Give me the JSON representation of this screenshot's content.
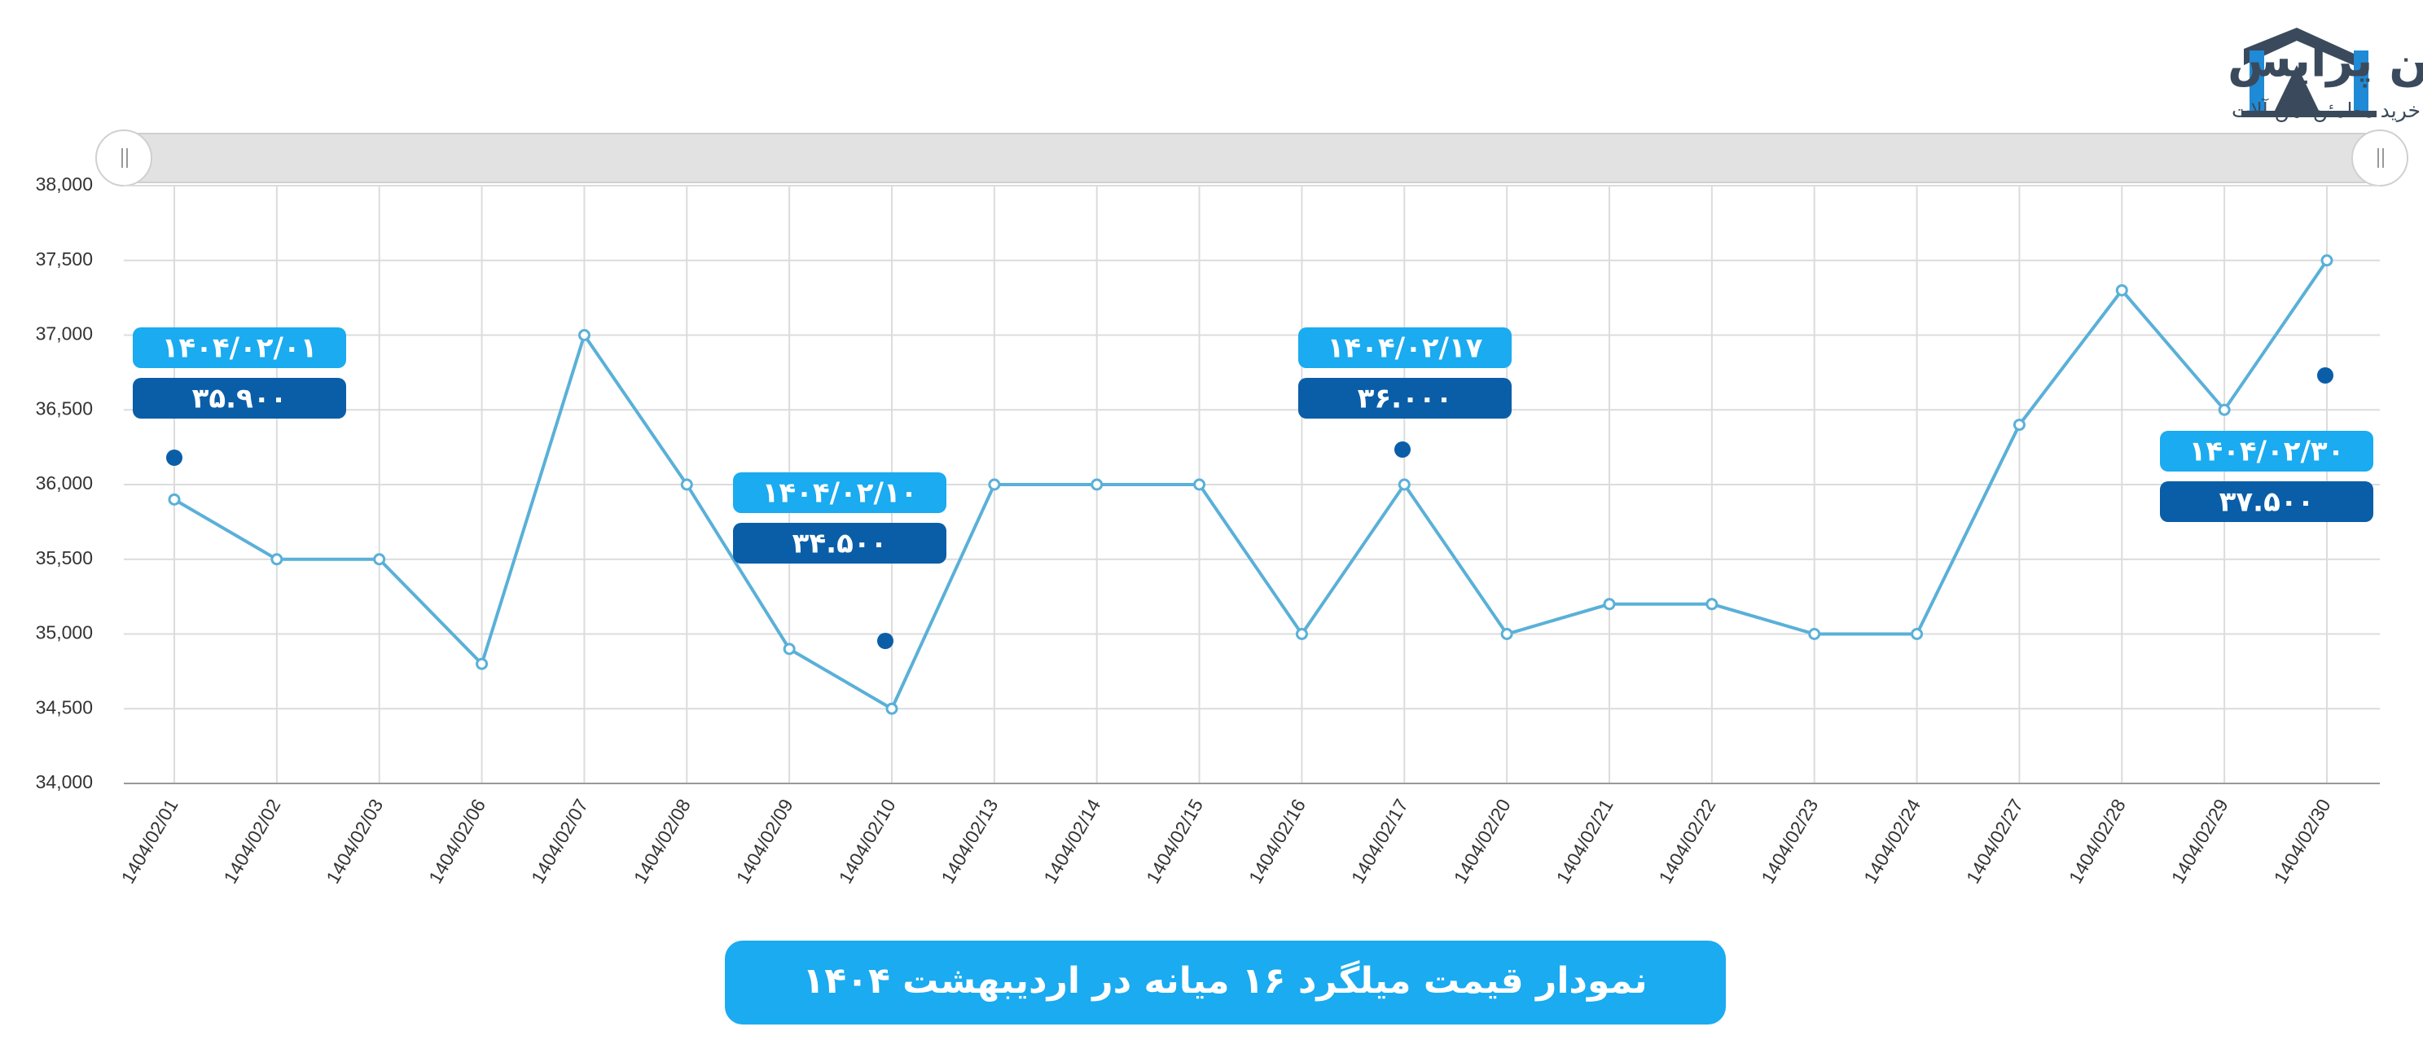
{
  "logo": {
    "name": "آهن پرایس",
    "tagline": "خرید مطمئن آهن آلات"
  },
  "chart_data": {
    "type": "line",
    "title": "نمودار قیمت میلگرد ۱۶ میانه در اردیبهشت ۱۴۰۴",
    "categories": [
      "1404/02/01",
      "1404/02/02",
      "1404/02/03",
      "1404/02/06",
      "1404/02/07",
      "1404/02/08",
      "1404/02/09",
      "1404/02/10",
      "1404/02/13",
      "1404/02/14",
      "1404/02/15",
      "1404/02/16",
      "1404/02/17",
      "1404/02/20",
      "1404/02/21",
      "1404/02/22",
      "1404/02/23",
      "1404/02/24",
      "1404/02/27",
      "1404/02/28",
      "1404/02/29",
      "1404/02/30"
    ],
    "series": [
      {
        "color": "#5ab0d8",
        "values": [
          35900,
          35500,
          35500,
          34800,
          37000,
          36000,
          34900,
          34500,
          36000,
          36000,
          36000,
          35000,
          36000,
          35000,
          35200,
          35200,
          35000,
          35000,
          36400,
          37300,
          36500,
          37500
        ],
        "value_labels": [
          "۳۵.۹۰۰",
          null,
          null,
          null,
          null,
          null,
          null,
          "۳۴.۵۰۰",
          null,
          null,
          null,
          null,
          "۳۶.۰۰۰",
          null,
          null,
          null,
          null,
          null,
          null,
          null,
          null,
          "۳۷.۵۰۰"
        ],
        "date_labels": [
          "۱۴۰۴/۰۲/۰۱",
          null,
          null,
          null,
          null,
          null,
          null,
          "۱۴۰۴/۰۲/۱۰",
          null,
          null,
          null,
          null,
          "۱۴۰۴/۰۲/۱۷",
          null,
          null,
          null,
          null,
          null,
          null,
          null,
          null,
          "۱۴۰۴/۰۲/۳۰"
        ]
      }
    ],
    "ylim": [
      34000,
      38000
    ],
    "yticks": [
      {
        "value": 34000,
        "label": "34,000"
      },
      {
        "value": 34500,
        "label": "34,500"
      },
      {
        "value": 35000,
        "label": "35,000"
      },
      {
        "value": 35500,
        "label": "35,500"
      },
      {
        "value": 36000,
        "label": "36,000"
      },
      {
        "value": 36500,
        "label": "36,500"
      },
      {
        "value": 37000,
        "label": "37,000"
      },
      {
        "value": 37500,
        "label": "37,500"
      },
      {
        "value": 38000,
        "label": "38,000"
      }
    ],
    "grid": true
  }
}
